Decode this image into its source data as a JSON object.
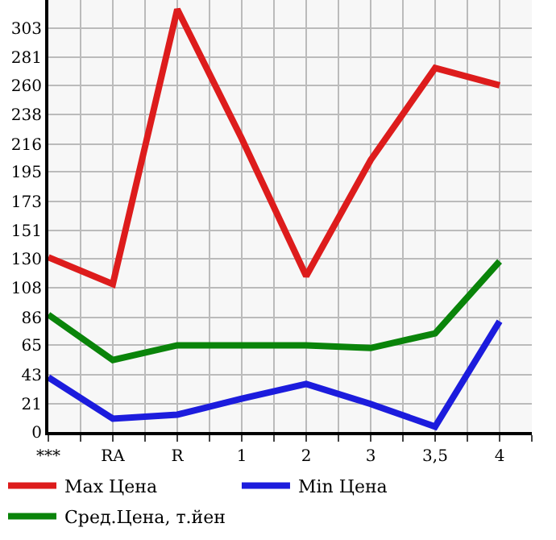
{
  "chart_data": {
    "type": "line",
    "categories": [
      "***",
      "RA",
      "R",
      "1",
      "2",
      "3",
      "3,5",
      "4"
    ],
    "series": [
      {
        "name": "Max Цена",
        "color": "#dd1c1c",
        "values": [
          131,
          111,
          317,
          220,
          117,
          204,
          273,
          260
        ]
      },
      {
        "name": "Min Цена",
        "color": "#1c1cdd",
        "values": [
          41,
          10,
          13,
          25,
          36,
          21,
          4,
          83
        ]
      },
      {
        "name": "Сред.Цена, т.йен",
        "color": "#0a840a",
        "values": [
          88,
          54,
          65,
          65,
          65,
          63,
          74,
          128
        ]
      }
    ],
    "ylim": [
      0,
      324
    ],
    "yticks": [
      0,
      21,
      43,
      65,
      86,
      108,
      130,
      151,
      173,
      195,
      216,
      238,
      260,
      281,
      303
    ],
    "grid": true,
    "legend": "bottom",
    "marker": "none",
    "line_style": "solid"
  }
}
